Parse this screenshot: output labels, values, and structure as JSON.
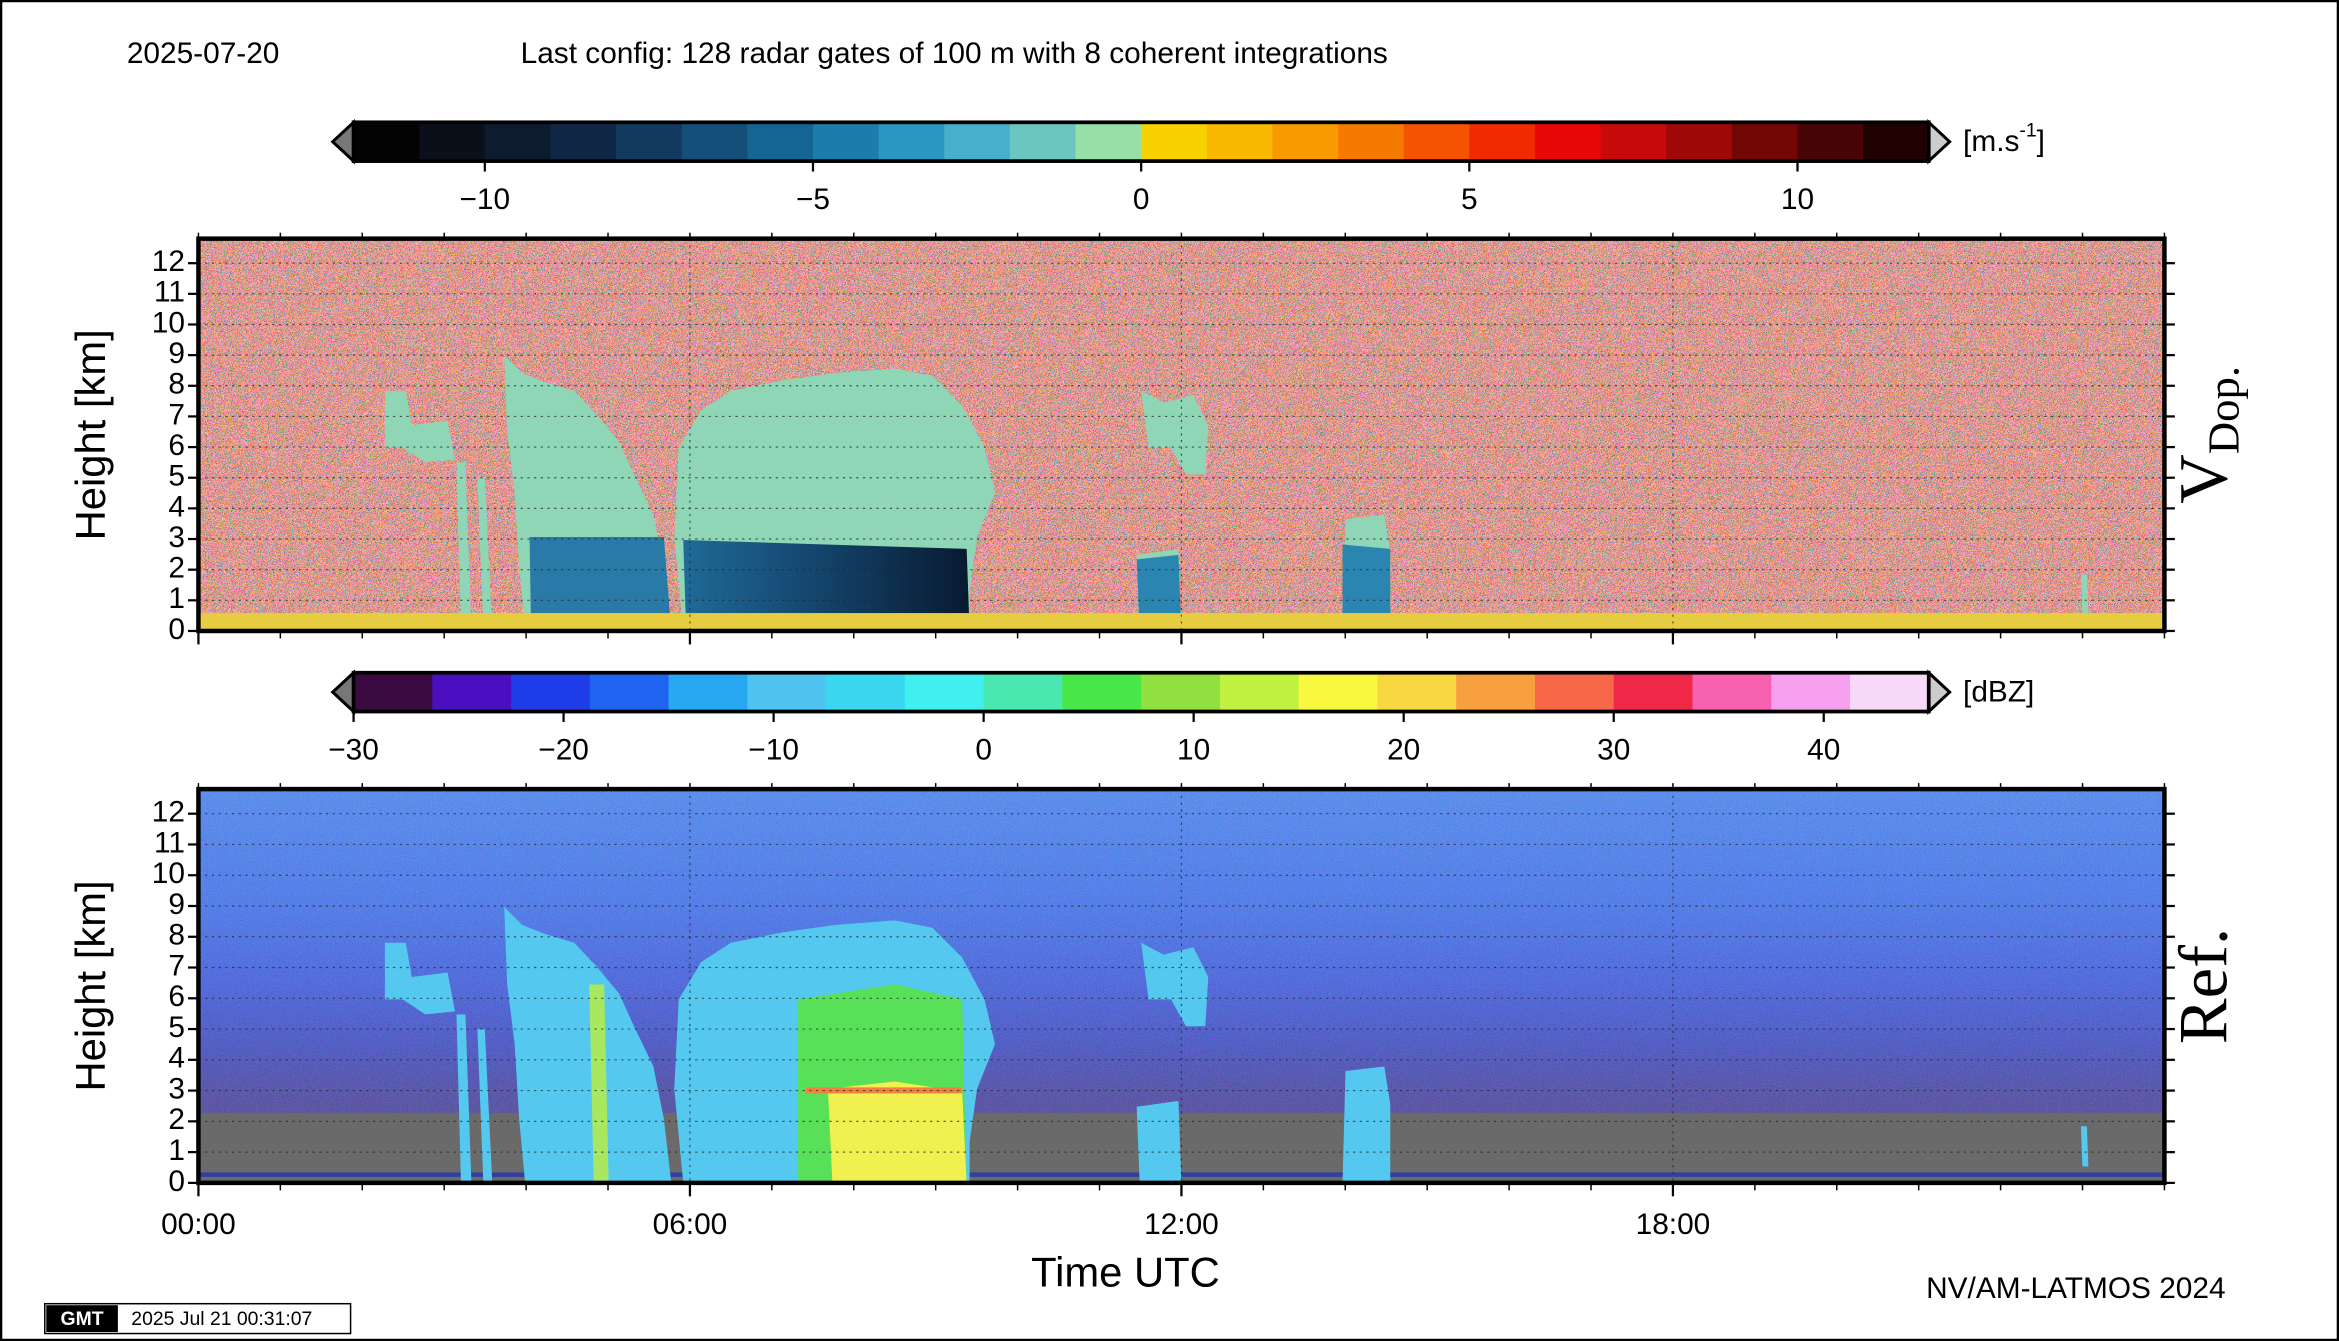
{
  "header": {
    "date": "2025-07-20",
    "config": "Last config: 128 radar gates of 100 m with 8 coherent integrations"
  },
  "chart_data": [
    {
      "type": "heatmap",
      "panel_label": "V",
      "panel_label_sub": "Dop.",
      "ylabel": "Height [km]",
      "xlim": [
        0,
        24
      ],
      "ylim": [
        0,
        12.8
      ],
      "yticks": [
        0,
        1,
        2,
        3,
        4,
        5,
        6,
        7,
        8,
        9,
        10,
        11,
        12
      ],
      "grid": true,
      "colorbar": {
        "clim": [
          -12,
          12
        ],
        "unit": [
          "[m.s",
          "-1",
          "]"
        ],
        "ticks": [
          {
            "value": -10,
            "label": "−10"
          },
          {
            "value": -5,
            "label": "−5"
          },
          0,
          5,
          10
        ],
        "colors": [
          "#030303",
          "#0a0f1a",
          "#0e1a2e",
          "#102846",
          "#123a5e",
          "#134f78",
          "#156592",
          "#1a7dac",
          "#2a96c2",
          "#47afcc",
          "#6ac6c0",
          "#96e0a8",
          "#f8d200",
          "#f9b800",
          "#f89a00",
          "#f67a00",
          "#f45400",
          "#f22a00",
          "#e80808",
          "#c80a0a",
          "#a00808",
          "#740606",
          "#480404",
          "#200202"
        ]
      }
    },
    {
      "type": "heatmap",
      "panel_label": "Ref.",
      "ylabel": "Height [km]",
      "xlabel": "Time UTC",
      "xlim": [
        0,
        24
      ],
      "ylim": [
        0,
        12.8
      ],
      "yticks": [
        0,
        1,
        2,
        3,
        4,
        5,
        6,
        7,
        8,
        9,
        10,
        11,
        12
      ],
      "grid": true,
      "xticks": [
        {
          "value": 0,
          "label": "00:00"
        },
        {
          "value": 6,
          "label": "06:00"
        },
        {
          "value": 12,
          "label": "12:00"
        },
        {
          "value": 18,
          "label": "18:00"
        }
      ],
      "colorbar": {
        "clim": [
          -30,
          45
        ],
        "unit": [
          "[dBZ]"
        ],
        "ticks": [
          {
            "value": -30,
            "label": "−30"
          },
          {
            "value": -20,
            "label": "−20"
          },
          {
            "value": -10,
            "label": "−10"
          },
          0,
          10,
          20,
          30,
          40
        ],
        "colors": [
          "#3a0a40",
          "#4a10c0",
          "#1e3ce8",
          "#1f64f0",
          "#28a8f0",
          "#50c4f0",
          "#3ad8f0",
          "#40f0f0",
          "#48e8b0",
          "#48e848",
          "#90e040",
          "#c0f040",
          "#f8f840",
          "#f8d840",
          "#f8a040",
          "#f86848",
          "#f02848",
          "#f860b0",
          "#f8a0f0",
          "#f8d8f8"
        ]
      }
    }
  ],
  "footer": {
    "credit": "NV/AM-LATMOS 2024",
    "timestamp": "2025 Jul 21 00:31:07",
    "logo": "GMT"
  }
}
